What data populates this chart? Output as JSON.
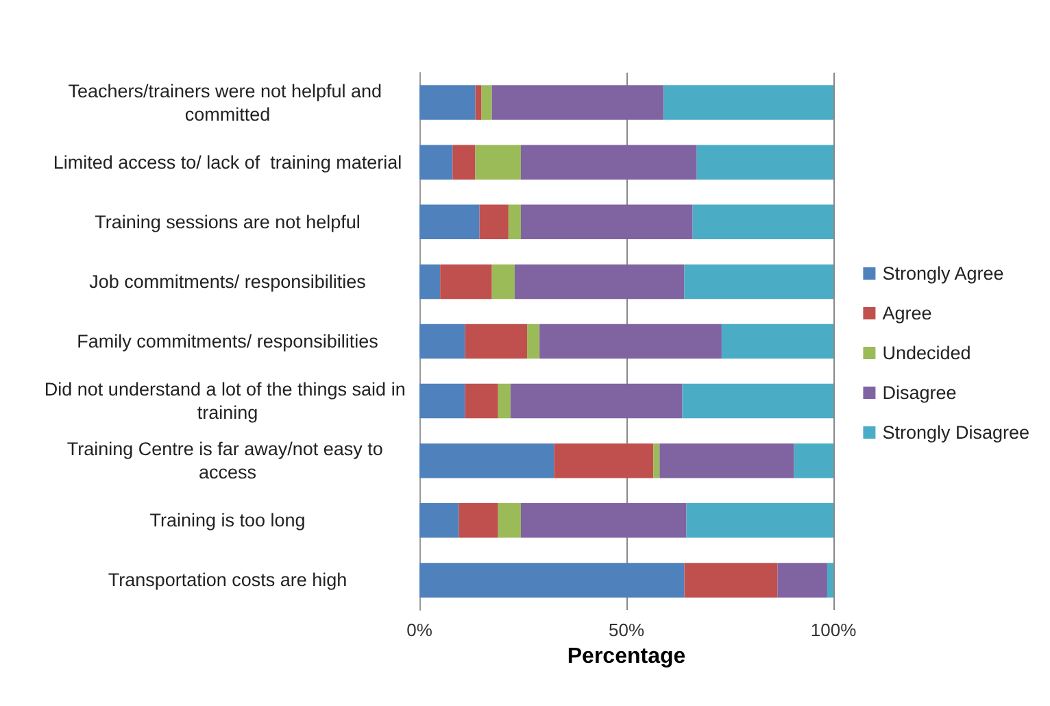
{
  "chart_data": {
    "type": "bar",
    "orientation": "horizontal",
    "stacked": true,
    "xlabel": "Percentage",
    "categories": [
      "Teachers/trainers were not helpful and committed",
      "Limited access to/ lack of  training material",
      "Training sessions are not helpful",
      "Job commitments/ responsibilities",
      "Family commitments/ responsibilities",
      "Did not understand a lot of the things said in training",
      "Training Centre is far away/not easy to access",
      "Training is too long",
      "Transportation costs are high"
    ],
    "series": [
      {
        "name": "Strongly Agree",
        "color": "#4f81bd",
        "values": [
          13.5,
          8,
          14.5,
          5,
          11,
          11,
          32.5,
          9.5,
          64
        ]
      },
      {
        "name": "Agree",
        "color": "#c0504d",
        "values": [
          1.5,
          5.5,
          7,
          12.5,
          15,
          8,
          24,
          9.5,
          22.5
        ]
      },
      {
        "name": "Undecided",
        "color": "#9bbb59",
        "values": [
          2.5,
          11,
          3,
          5.5,
          3,
          3,
          1.5,
          5.5,
          0
        ]
      },
      {
        "name": "Disagree",
        "color": "#8064a2",
        "values": [
          41.5,
          42.5,
          41.5,
          41,
          44,
          41.5,
          32.5,
          40,
          12
        ]
      },
      {
        "name": "Strongly Disagree",
        "color": "#4bacc6",
        "values": [
          41,
          33,
          34,
          36,
          27,
          36.5,
          9.5,
          35.5,
          1.5
        ]
      }
    ],
    "xlim": [
      0,
      100
    ],
    "xticks": [
      {
        "value": 0,
        "label": "0%"
      },
      {
        "value": 50,
        "label": "50%"
      },
      {
        "value": 100,
        "label": "100%"
      }
    ],
    "grid": "x",
    "legend": "right"
  }
}
